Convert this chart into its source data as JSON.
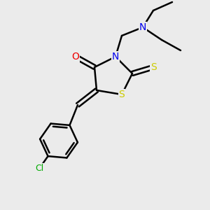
{
  "background_color": "#ebebeb",
  "atom_colors": {
    "C": "#000000",
    "N": "#0000ee",
    "O": "#ee0000",
    "S_ring": "#cccc00",
    "S_exo": "#cccc00",
    "Cl": "#00aa00"
  },
  "fig_width": 3.0,
  "fig_height": 3.0,
  "dpi": 100
}
